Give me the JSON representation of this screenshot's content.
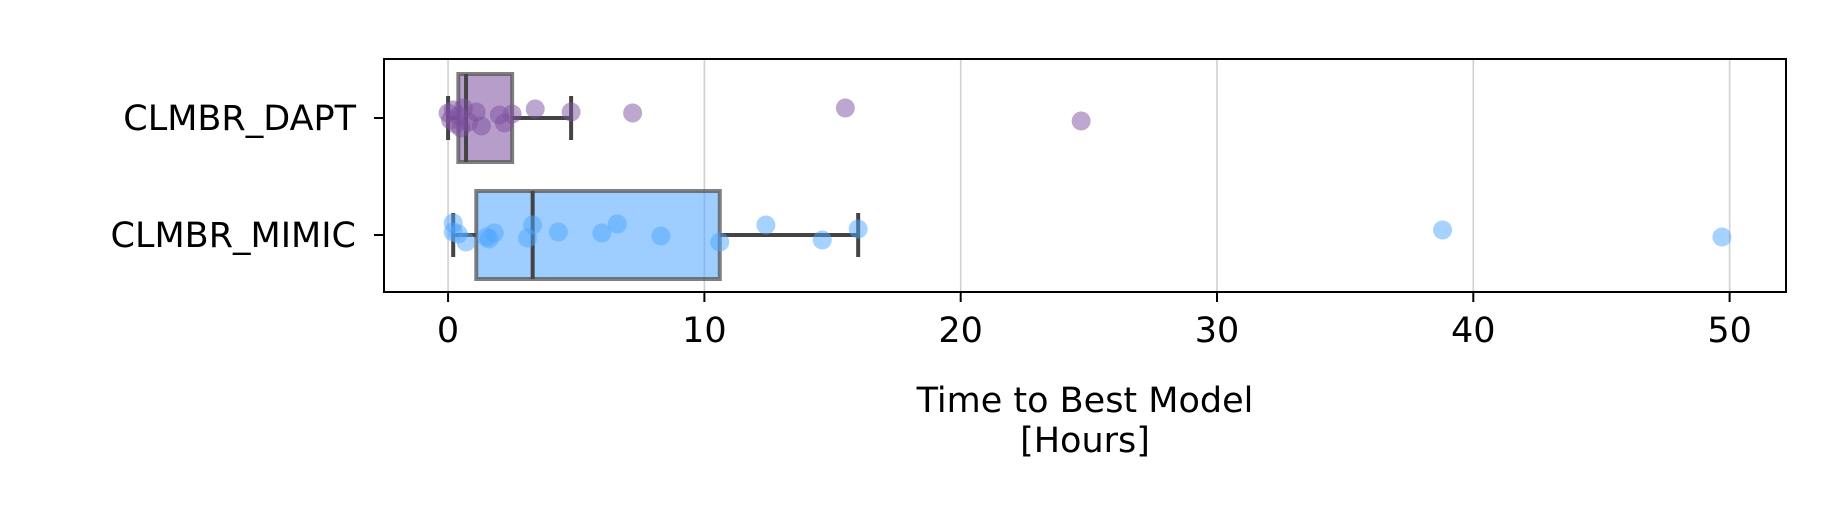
{
  "chart_data": {
    "type": "box",
    "orientation": "horizontal",
    "xlabel_lines": [
      "Time to Best Model",
      "[Hours]"
    ],
    "xlim": [
      -2.5,
      52.2
    ],
    "xticks": [
      0,
      10,
      20,
      30,
      40,
      50
    ],
    "grid": "x-major",
    "categories": [
      "CLMBR_DAPT",
      "CLMBR_MIMIC"
    ],
    "series": [
      {
        "name": "CLMBR_DAPT",
        "color": "#7B4F9E",
        "box": {
          "whisker_low": 0.0,
          "q1": 0.4,
          "median": 0.7,
          "q3": 2.5,
          "whisker_high": 4.8
        },
        "points": [
          {
            "x": 0.0,
            "j": 0.05
          },
          {
            "x": 0.1,
            "j": -0.02
          },
          {
            "x": 0.2,
            "j": 0.08
          },
          {
            "x": 0.3,
            "j": -0.06
          },
          {
            "x": 0.4,
            "j": 0.02
          },
          {
            "x": 0.5,
            "j": -0.1
          },
          {
            "x": 0.6,
            "j": 0.1
          },
          {
            "x": 0.8,
            "j": -0.04
          },
          {
            "x": 1.1,
            "j": 0.06
          },
          {
            "x": 1.3,
            "j": -0.08
          },
          {
            "x": 2.0,
            "j": 0.03
          },
          {
            "x": 2.2,
            "j": -0.05
          },
          {
            "x": 2.5,
            "j": 0.04
          },
          {
            "x": 3.4,
            "j": 0.09
          },
          {
            "x": 4.8,
            "j": 0.06
          },
          {
            "x": 7.2,
            "j": 0.05
          },
          {
            "x": 15.5,
            "j": 0.1
          },
          {
            "x": 24.7,
            "j": -0.03
          }
        ]
      },
      {
        "name": "CLMBR_MIMIC",
        "color": "#4DA6FF",
        "box": {
          "whisker_low": 0.2,
          "q1": 1.1,
          "median": 3.3,
          "q3": 10.6,
          "whisker_high": 16.0
        },
        "points": [
          {
            "x": 0.2,
            "j": 0.12
          },
          {
            "x": 0.2,
            "j": 0.03
          },
          {
            "x": 0.4,
            "j": 0.01
          },
          {
            "x": 0.7,
            "j": -0.07
          },
          {
            "x": 1.5,
            "j": -0.02
          },
          {
            "x": 1.8,
            "j": 0.02
          },
          {
            "x": 1.6,
            "j": -0.04
          },
          {
            "x": 3.1,
            "j": -0.03
          },
          {
            "x": 3.3,
            "j": 0.1
          },
          {
            "x": 4.3,
            "j": 0.03
          },
          {
            "x": 6.0,
            "j": 0.02
          },
          {
            "x": 6.6,
            "j": 0.11
          },
          {
            "x": 8.3,
            "j": -0.01
          },
          {
            "x": 10.6,
            "j": -0.07
          },
          {
            "x": 12.4,
            "j": 0.1
          },
          {
            "x": 14.6,
            "j": -0.05
          },
          {
            "x": 16.0,
            "j": 0.06
          },
          {
            "x": 38.8,
            "j": 0.05
          },
          {
            "x": 49.7,
            "j": -0.02
          }
        ]
      }
    ]
  }
}
